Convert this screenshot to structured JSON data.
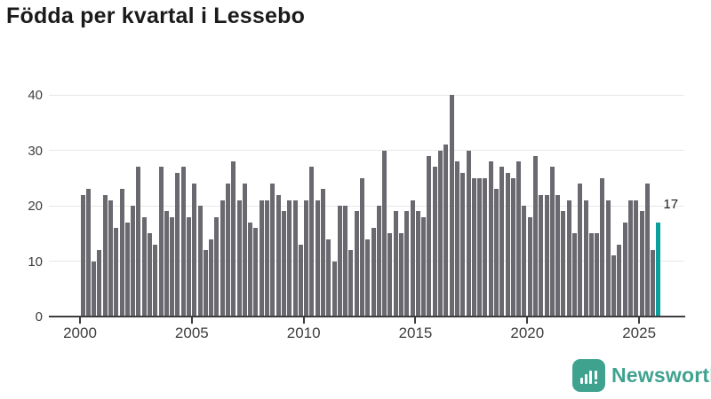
{
  "title": "Födda per kvartal i Lessebo",
  "chart_data": {
    "type": "bar",
    "title": "Födda per kvartal i Lessebo",
    "xlabel": "",
    "ylabel": "",
    "start_period": "2000 Q1",
    "end_period": "2025 Q4",
    "period": "quarterly",
    "values": [
      22,
      23,
      10,
      12,
      22,
      21,
      16,
      23,
      17,
      20,
      27,
      18,
      15,
      13,
      27,
      19,
      18,
      26,
      27,
      18,
      24,
      20,
      12,
      14,
      18,
      21,
      24,
      28,
      21,
      24,
      17,
      16,
      21,
      21,
      24,
      22,
      19,
      21,
      21,
      13,
      21,
      27,
      21,
      23,
      14,
      10,
      20,
      20,
      12,
      19,
      25,
      14,
      16,
      20,
      30,
      15,
      19,
      15,
      19,
      21,
      19,
      18,
      29,
      27,
      30,
      31,
      40,
      28,
      26,
      30,
      25,
      25,
      25,
      28,
      23,
      27,
      26,
      25,
      28,
      20,
      18,
      29,
      22,
      22,
      27,
      22,
      19,
      21,
      15,
      24,
      21,
      15,
      15,
      25,
      21,
      11,
      13,
      17,
      21,
      21,
      19,
      24,
      12,
      17
    ],
    "highlight_index": 103,
    "highlight_label": "17",
    "x_tick_labels": [
      "2000",
      "2005",
      "2010",
      "2015",
      "2020",
      "2025"
    ],
    "y_tick_labels": [
      "0",
      "10",
      "20",
      "30",
      "40"
    ],
    "y_ticks": [
      0,
      10,
      20,
      30,
      40
    ],
    "ylim": [
      0,
      40
    ],
    "grid": true,
    "legend": "none",
    "bar_color": "#69696f",
    "highlight_color": "#0ba09d"
  },
  "footer": {
    "logo_text": "Newsworthy",
    "logo_color": "#3fa28f"
  }
}
